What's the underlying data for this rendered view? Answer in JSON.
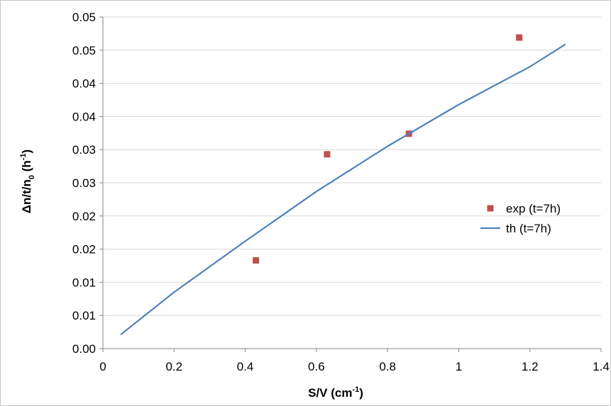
{
  "chart_data": {
    "type": "scatter",
    "xlabel": {
      "main": "S/V (cm",
      "sup": "-1",
      "end": ")"
    },
    "ylabel": {
      "main": "Δn/t/n",
      "sub": "0",
      "mid": " (h",
      "sup": "-1",
      "end": ")"
    },
    "xlim": [
      0,
      1.4
    ],
    "ylim": [
      0,
      0.05
    ],
    "x_ticks": [
      {
        "value": 0,
        "label": "0"
      },
      {
        "value": 0.2,
        "label": "0.2"
      },
      {
        "value": 0.4,
        "label": "0.4"
      },
      {
        "value": 0.6,
        "label": "0.6"
      },
      {
        "value": 0.8,
        "label": "0.8"
      },
      {
        "value": 1,
        "label": "1"
      },
      {
        "value": 1.2,
        "label": "1.2"
      },
      {
        "value": 1.4,
        "label": "1.4"
      }
    ],
    "y_ticks": [
      {
        "value": 0.0,
        "label": "0.00"
      },
      {
        "value": 0.005,
        "label": "0.01"
      },
      {
        "value": 0.01,
        "label": "0.01"
      },
      {
        "value": 0.015,
        "label": "0.02"
      },
      {
        "value": 0.02,
        "label": "0.02"
      },
      {
        "value": 0.025,
        "label": "0.03"
      },
      {
        "value": 0.03,
        "label": "0.03"
      },
      {
        "value": 0.035,
        "label": "0.04"
      },
      {
        "value": 0.04,
        "label": "0.04"
      },
      {
        "value": 0.045,
        "label": "0.05"
      },
      {
        "value": 0.05,
        "label": "0.05"
      }
    ],
    "grid": {
      "horizontal": true,
      "vertical": false
    },
    "legend_position": "right",
    "series": [
      {
        "name": "exp (t=7h)",
        "type": "scatter",
        "marker": "square",
        "color": "#c0504d",
        "points": [
          {
            "x": 0.43,
            "y": 0.0133
          },
          {
            "x": 0.63,
            "y": 0.0293
          },
          {
            "x": 0.86,
            "y": 0.0324
          },
          {
            "x": 1.17,
            "y": 0.0469
          }
        ]
      },
      {
        "name": "th (t=7h)",
        "type": "line",
        "color": "#4f81bd",
        "points": [
          {
            "x": 0.05,
            "y": 0.0021
          },
          {
            "x": 0.2,
            "y": 0.0085
          },
          {
            "x": 0.4,
            "y": 0.0162
          },
          {
            "x": 0.6,
            "y": 0.0237
          },
          {
            "x": 0.8,
            "y": 0.0305
          },
          {
            "x": 1.0,
            "y": 0.0368
          },
          {
            "x": 1.2,
            "y": 0.0425
          },
          {
            "x": 1.3,
            "y": 0.0459
          }
        ]
      }
    ]
  }
}
